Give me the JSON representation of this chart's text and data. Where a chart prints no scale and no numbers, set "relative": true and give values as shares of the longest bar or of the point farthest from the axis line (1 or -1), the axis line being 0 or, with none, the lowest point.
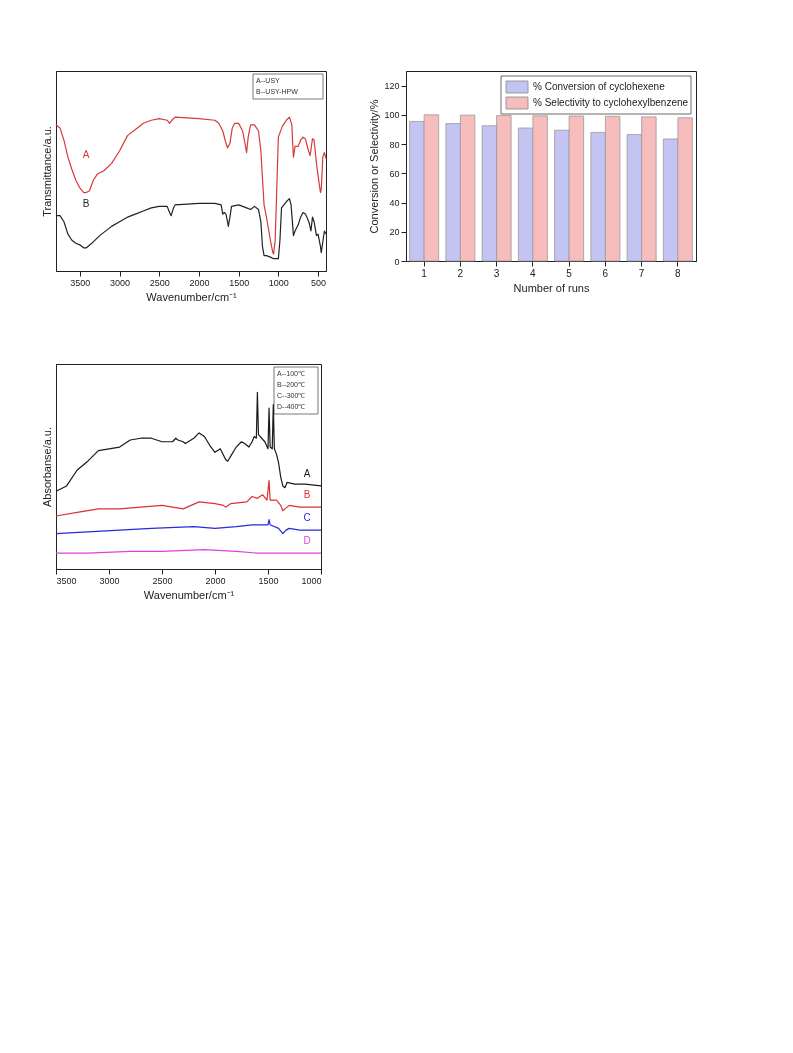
{
  "chart_data": [
    {
      "type": "line",
      "relative": true,
      "xlabel": "Wavenumber/cm⁻¹",
      "ylabel": "Transmittance/a.u.",
      "xlim": [
        3800,
        400
      ],
      "xticks": [
        3500,
        3000,
        2500,
        2000,
        1500,
        1000,
        500
      ],
      "grid": false,
      "legend": false,
      "annotations": [
        "A--USY",
        "B--USY-HPW"
      ],
      "x": [
        3800,
        3750,
        3700,
        3650,
        3600,
        3550,
        3500,
        3450,
        3420,
        3380,
        3330,
        3280,
        3200,
        3100,
        3000,
        2900,
        2800,
        2700,
        2600,
        2500,
        2400,
        2370,
        2340,
        2300,
        2000,
        1800,
        1750,
        1700,
        1670,
        1640,
        1610,
        1580,
        1550,
        1500,
        1450,
        1420,
        1400,
        1380,
        1350,
        1300,
        1250,
        1220,
        1200,
        1180,
        1150,
        1120,
        1100,
        1070,
        1060,
        1040,
        1020,
        1000,
        950,
        900,
        860,
        830,
        820,
        810,
        790,
        750,
        720,
        690,
        660,
        620,
        600,
        570,
        550,
        520,
        500,
        470,
        460,
        440,
        420,
        400
      ],
      "series": [
        {
          "name": "A",
          "color": "#d63a3a",
          "values": [
            0.95,
            0.93,
            0.85,
            0.74,
            0.66,
            0.59,
            0.54,
            0.51,
            0.51,
            0.52,
            0.59,
            0.63,
            0.65,
            0.7,
            0.78,
            0.88,
            0.92,
            0.96,
            0.98,
            0.99,
            0.98,
            0.96,
            0.98,
            1.0,
            0.99,
            0.98,
            0.96,
            0.91,
            0.85,
            0.8,
            0.83,
            0.93,
            0.96,
            0.96,
            0.91,
            0.83,
            0.77,
            0.87,
            0.95,
            0.95,
            0.91,
            0.78,
            0.6,
            0.43,
            0.35,
            0.26,
            0.2,
            0.12,
            0.11,
            0.2,
            0.53,
            0.87,
            0.94,
            0.98,
            1.0,
            0.95,
            0.83,
            0.74,
            0.81,
            0.81,
            0.85,
            0.87,
            0.86,
            0.78,
            0.75,
            0.86,
            0.85,
            0.7,
            0.62,
            0.51,
            0.53,
            0.74,
            0.77,
            0.73
          ]
        },
        {
          "name": "B",
          "color": "#222222",
          "x": [
            3800,
            3750,
            3700,
            3650,
            3600,
            3550,
            3500,
            3450,
            3420,
            3350,
            3250,
            3100,
            3000,
            2900,
            2800,
            2700,
            2600,
            2500,
            2400,
            2370,
            2350,
            2320,
            2300,
            2000,
            1800,
            1720,
            1700,
            1680,
            1660,
            1640,
            1630,
            1610,
            1590,
            1500,
            1400,
            1350,
            1300,
            1250,
            1220,
            1200,
            1180,
            1150,
            1100,
            1060,
            1020,
            1000,
            980,
            960,
            900,
            860,
            840,
            820,
            810,
            790,
            750,
            720,
            690,
            660,
            640,
            610,
            590,
            570,
            550,
            520,
            500,
            470,
            460,
            440,
            420,
            400
          ],
          "values": [
            0.36,
            0.36,
            0.32,
            0.24,
            0.2,
            0.18,
            0.17,
            0.15,
            0.15,
            0.18,
            0.23,
            0.29,
            0.32,
            0.35,
            0.37,
            0.39,
            0.41,
            0.42,
            0.42,
            0.38,
            0.36,
            0.41,
            0.43,
            0.44,
            0.44,
            0.43,
            0.37,
            0.38,
            0.37,
            0.32,
            0.29,
            0.35,
            0.42,
            0.43,
            0.41,
            0.4,
            0.42,
            0.4,
            0.32,
            0.16,
            0.1,
            0.1,
            0.09,
            0.08,
            0.08,
            0.08,
            0.2,
            0.41,
            0.45,
            0.47,
            0.43,
            0.3,
            0.23,
            0.26,
            0.3,
            0.35,
            0.38,
            0.37,
            0.35,
            0.31,
            0.26,
            0.35,
            0.32,
            0.23,
            0.24,
            0.16,
            0.12,
            0.19,
            0.26,
            0.24
          ]
        }
      ]
    },
    {
      "type": "line",
      "relative": true,
      "xlabel": "Wavenumber/cm⁻¹",
      "ylabel": "Absorbanse/a.u.",
      "xlim": [
        3500,
        1000
      ],
      "xticks": [
        3500,
        3000,
        2500,
        2000,
        1500,
        1000
      ],
      "grid": false,
      "legend": false,
      "annotations": [
        "A--100℃",
        "B--200℃",
        "C--300℃",
        "D--400℃"
      ],
      "series": [
        {
          "name": "A",
          "color": "#1a1a1a",
          "x": [
            3500,
            3400,
            3300,
            3200,
            3100,
            3000,
            2900,
            2800,
            2700,
            2600,
            2500,
            2400,
            2370,
            2350,
            2300,
            2280,
            2200,
            2150,
            2100,
            2050,
            2000,
            1950,
            1900,
            1880,
            1850,
            1800,
            1750,
            1720,
            1680,
            1650,
            1630,
            1610,
            1600,
            1590,
            1560,
            1530,
            1500,
            1490,
            1480,
            1460,
            1450,
            1440,
            1420,
            1400,
            1380,
            1360,
            1340,
            1320,
            1250,
            1150,
            1000
          ],
          "values": [
            0.44,
            0.47,
            0.56,
            0.61,
            0.67,
            0.68,
            0.69,
            0.73,
            0.74,
            0.74,
            0.72,
            0.72,
            0.74,
            0.73,
            0.72,
            0.71,
            0.74,
            0.77,
            0.75,
            0.7,
            0.66,
            0.68,
            0.62,
            0.61,
            0.64,
            0.69,
            0.72,
            0.71,
            0.69,
            0.72,
            0.75,
            0.74,
            1.0,
            0.76,
            0.74,
            0.72,
            0.68,
            0.91,
            0.69,
            0.68,
            0.93,
            0.68,
            0.65,
            0.6,
            0.52,
            0.47,
            0.46,
            0.49,
            0.48,
            0.48,
            0.47
          ]
        },
        {
          "name": "B",
          "color": "#e03030",
          "x": [
            3500,
            3300,
            3100,
            2900,
            2700,
            2500,
            2300,
            2150,
            2000,
            1920,
            1900,
            1850,
            1700,
            1650,
            1600,
            1550,
            1510,
            1490,
            1480,
            1420,
            1380,
            1360,
            1340,
            1300,
            1200,
            1000
          ],
          "values": [
            0.3,
            0.32,
            0.34,
            0.34,
            0.35,
            0.36,
            0.34,
            0.38,
            0.37,
            0.36,
            0.35,
            0.37,
            0.38,
            0.41,
            0.4,
            0.42,
            0.39,
            0.5,
            0.39,
            0.39,
            0.36,
            0.33,
            0.34,
            0.36,
            0.35,
            0.35
          ]
        },
        {
          "name": "C",
          "color": "#2a2ad8",
          "x": [
            3500,
            3200,
            2900,
            2600,
            2200,
            2000,
            1800,
            1650,
            1550,
            1500,
            1490,
            1480,
            1400,
            1360,
            1330,
            1300,
            1200,
            1000
          ],
          "values": [
            0.2,
            0.21,
            0.22,
            0.23,
            0.24,
            0.23,
            0.24,
            0.25,
            0.25,
            0.25,
            0.28,
            0.25,
            0.23,
            0.2,
            0.22,
            0.23,
            0.22,
            0.22
          ]
        },
        {
          "name": "D",
          "color": "#e040e0",
          "x": [
            3500,
            3200,
            2800,
            2500,
            2100,
            1800,
            1600,
            1300,
            1000
          ],
          "values": [
            0.09,
            0.09,
            0.1,
            0.1,
            0.11,
            0.1,
            0.09,
            0.09,
            0.09
          ]
        }
      ]
    },
    {
      "type": "bar",
      "xlabel": "Number of runs",
      "ylabel": "Conversion or Selectivity/%",
      "categories": [
        "1",
        "2",
        "3",
        "4",
        "5",
        "6",
        "7",
        "8"
      ],
      "ylim": [
        0,
        130
      ],
      "yticks": [
        0,
        20,
        40,
        60,
        80,
        100,
        120
      ],
      "grid": false,
      "legend": "top right",
      "series": [
        {
          "name": "% Conversion of cyclohexene",
          "color": "#c4c4f2",
          "values": [
            95.5,
            94,
            92.5,
            91,
            89.5,
            88,
            86.5,
            83.5
          ]
        },
        {
          "name": "% Selectivity to cyclohexylbenzene",
          "color": "#f7bcbc",
          "values": [
            100,
            99.8,
            99.5,
            99.3,
            99.2,
            99,
            98.6,
            98
          ]
        }
      ]
    }
  ]
}
